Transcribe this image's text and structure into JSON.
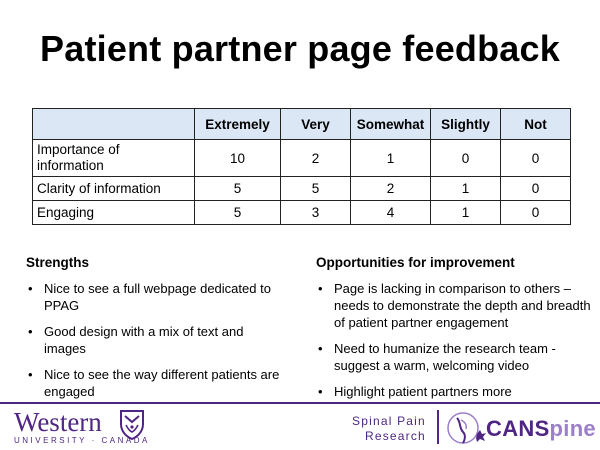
{
  "title": "Patient partner page feedback",
  "table": {
    "columns": [
      "Extremely",
      "Very",
      "Somewhat",
      "Slightly",
      "Not"
    ],
    "rows": [
      {
        "label": "Importance of information",
        "values": [
          "10",
          "2",
          "1",
          "0",
          "0"
        ]
      },
      {
        "label": "Clarity of information",
        "values": [
          "5",
          "5",
          "2",
          "1",
          "0"
        ]
      },
      {
        "label": "Engaging",
        "values": [
          "5",
          "3",
          "4",
          "1",
          "0"
        ]
      }
    ]
  },
  "strengths": {
    "heading": "Strengths",
    "items": [
      "Nice to see a full webpage dedicated to PPAG",
      "Good design with a mix of text and images",
      "Nice to see the way different patients are engaged"
    ]
  },
  "opportunities": {
    "heading": "Opportunities for improvement",
    "items": [
      "Page is lacking in comparison to others – needs to demonstrate the depth and breadth of patient partner engagement",
      "Need to humanize the research team - suggest a warm, welcoming video",
      "Highlight patient partners more"
    ]
  },
  "footer": {
    "western_word": "Western",
    "western_sub": "UNIVERSITY · CANADA",
    "spinal_line1": "Spinal Pain",
    "spinal_line2": "Research",
    "canspine_part1": "CANS",
    "canspine_part2": "pine",
    "brand_color": "#4f2683",
    "header_fill": "#dbe7f5"
  }
}
